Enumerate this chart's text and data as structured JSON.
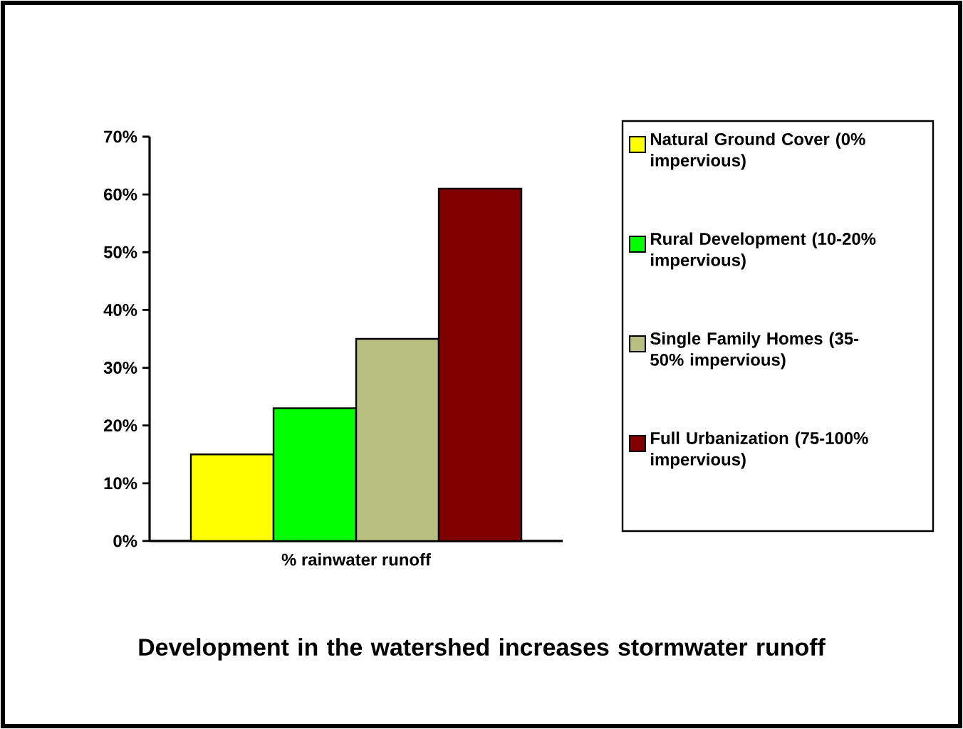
{
  "chart_data": {
    "type": "bar",
    "title": "Development in the watershed increases stormwater runoff",
    "categories": [
      "% rainwater runoff"
    ],
    "series": [
      {
        "name": "Natural Ground Cover (0% impervious)",
        "color": "#ffff00",
        "values": [
          15
        ]
      },
      {
        "name": "Rural Development (10-20% impervious)",
        "color": "#00ff00",
        "values": [
          23
        ]
      },
      {
        "name": "Single Family Homes (35-50% impervious)",
        "color": "#b8bf80",
        "values": [
          35
        ]
      },
      {
        "name": "Full Urbanization (75-100% impervious)",
        "color": "#800000",
        "values": [
          61
        ]
      }
    ],
    "ylim": [
      0,
      70
    ],
    "yticks": [
      {
        "value": 0,
        "label": "0%"
      },
      {
        "value": 10,
        "label": "10%"
      },
      {
        "value": 20,
        "label": "20%"
      },
      {
        "value": 30,
        "label": "30%"
      },
      {
        "value": 40,
        "label": "40%"
      },
      {
        "value": 50,
        "label": "50%"
      },
      {
        "value": 60,
        "label": "60%"
      },
      {
        "value": 70,
        "label": "70%"
      }
    ],
    "grid": false,
    "legend": "right"
  }
}
